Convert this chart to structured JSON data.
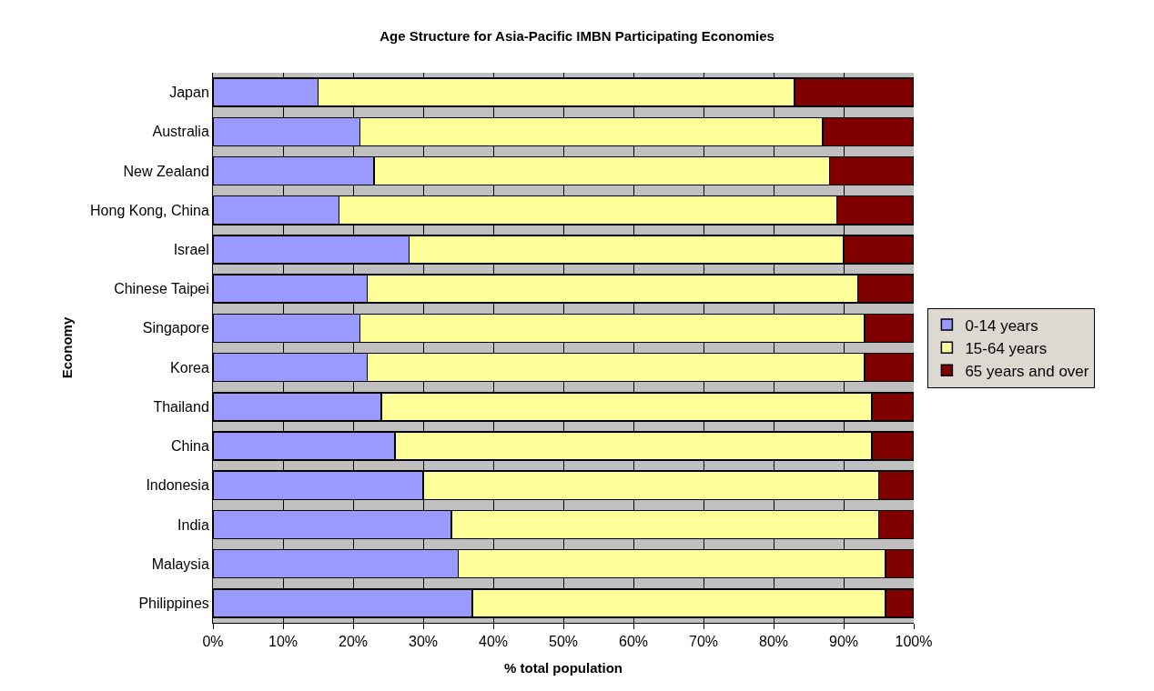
{
  "chart_data": {
    "type": "bar",
    "orientation": "horizontal",
    "stacked": true,
    "title": "Age Structure for Asia-Pacific IMBN Participating Economies",
    "xlabel": "% total population",
    "ylabel": "Economy",
    "categories": [
      "Japan",
      "Australia",
      "New Zealand",
      "Hong Kong, China",
      "Israel",
      "Chinese Taipei",
      "Singapore",
      "Korea",
      "Thailand",
      "China",
      "Indonesia",
      "India",
      "Malaysia",
      "Philippines"
    ],
    "series": [
      {
        "name": "0-14 years",
        "color": "#9999ff",
        "values": [
          15,
          21,
          23,
          18,
          28,
          22,
          21,
          22,
          24,
          26,
          30,
          34,
          35,
          37
        ]
      },
      {
        "name": "15-64 years",
        "color": "#ffff99",
        "values": [
          68,
          66,
          65,
          71,
          62,
          70,
          72,
          71,
          70,
          68,
          65,
          61,
          61,
          59
        ]
      },
      {
        "name": "65 years and over",
        "color": "#800000",
        "values": [
          17,
          13,
          12,
          11,
          10,
          8,
          7,
          7,
          6,
          6,
          5,
          5,
          4,
          4
        ]
      }
    ],
    "xlim": [
      0,
      100
    ],
    "xticks": [
      {
        "value": 0,
        "label": "0%"
      },
      {
        "value": 10,
        "label": "10%"
      },
      {
        "value": 20,
        "label": "20%"
      },
      {
        "value": 30,
        "label": "30%"
      },
      {
        "value": 40,
        "label": "40%"
      },
      {
        "value": 50,
        "label": "50%"
      },
      {
        "value": 60,
        "label": "60%"
      },
      {
        "value": 70,
        "label": "70%"
      },
      {
        "value": 80,
        "label": "80%"
      },
      {
        "value": 90,
        "label": "90%"
      },
      {
        "value": 100,
        "label": "100%"
      }
    ],
    "grid": "x",
    "legend": "right"
  }
}
